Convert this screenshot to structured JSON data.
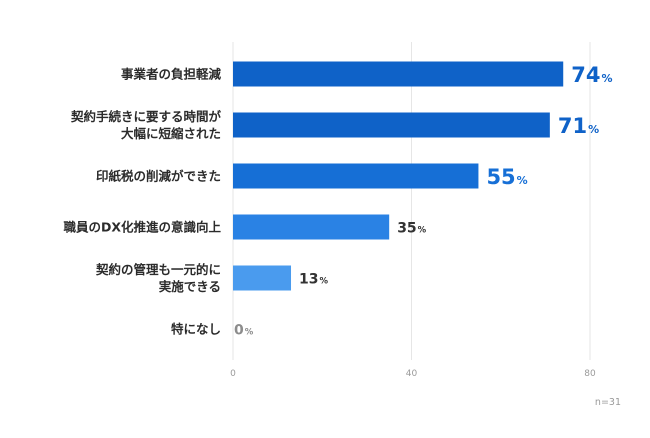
{
  "chart_data": {
    "type": "bar",
    "orientation": "horizontal",
    "categories": [
      [
        "事業者の負担軽減"
      ],
      [
        "契約手続きに要する時間が",
        "大幅に短縮された"
      ],
      [
        "印紙税の削減ができた"
      ],
      [
        "職員のDX化推進の意識向上"
      ],
      [
        "契約の管理も一元的に",
        "実施できる"
      ],
      [
        "特になし"
      ]
    ],
    "values": [
      74,
      71,
      55,
      35,
      13,
      0
    ],
    "value_unit": "%",
    "xlim": [
      0,
      80
    ],
    "ticks": [
      0,
      40,
      80
    ],
    "grid": true,
    "note": "n=31",
    "colors": {
      "bars": [
        "#0f62c8",
        "#0f62c8",
        "#166fd6",
        "#2a82e4",
        "#4a9bee",
        "#6aaff2"
      ],
      "value_labels": [
        "#0f62c8",
        "#0f62c8",
        "#166fd6",
        "#333333",
        "#333333",
        "#8c8c8c"
      ],
      "grid": "#e6e6e6"
    }
  }
}
